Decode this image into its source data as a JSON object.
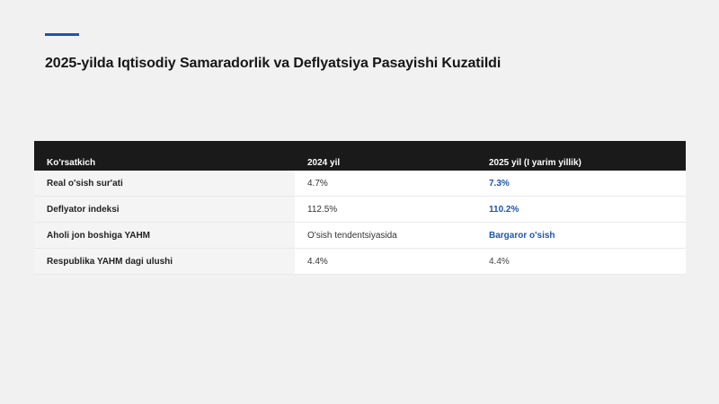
{
  "page": {
    "title": "2025-yilda Iqtisodiy Samaradorlik va Deflyatsiya Pasayishi Kuzatildi",
    "accent_color": "#1f56a8"
  },
  "table": {
    "headers": [
      "Ko'rsatkich",
      "2024 yil",
      "2025 yil (I yarim yillik)"
    ],
    "rows": [
      {
        "label": "Real o'sish sur'ati",
        "y2024": "4.7%",
        "y2025": "7.3%",
        "highlight": true
      },
      {
        "label": "Deflyator indeksi",
        "y2024": "112.5%",
        "y2025": "110.2%",
        "highlight": true
      },
      {
        "label": "Aholi jon boshiga YAHM",
        "y2024": "O'sish tendentsiyasida",
        "y2025": "Bargaror o'sish",
        "highlight": true
      },
      {
        "label": "Respublika YAHM dagi ulushi",
        "y2024": "4.4%",
        "y2025": "4.4%",
        "highlight": false
      }
    ]
  }
}
